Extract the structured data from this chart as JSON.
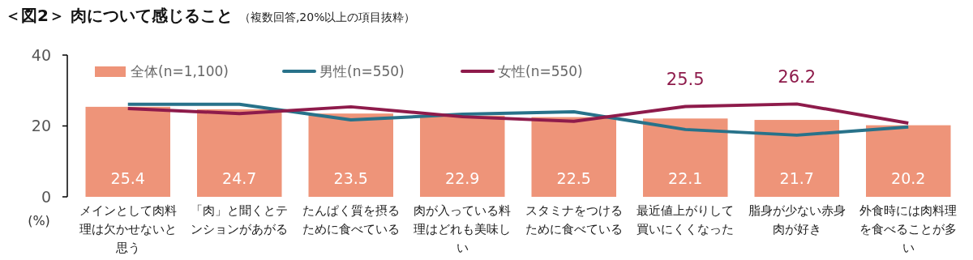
{
  "chart_data": {
    "type": "bar",
    "title": "＜図2＞ 肉について感じること",
    "subtitle": "（複数回答,20%以上の項目抜粋）",
    "ylabel": "(%)",
    "categories": [
      "メインとして肉料理は欠かせないと思う",
      "「肉」と聞くとテンションがあがる",
      "たんぱく質を摂るために食べている",
      "肉が入っている料理はどれも美味しい",
      "スタミナをつけるために食べている",
      "最近値上がりして買いにくくなった",
      "脂身が少ない赤身肉が好き",
      "外食時には肉料理を食べることが多い"
    ],
    "series": [
      {
        "name": "全体(n=1,100)",
        "color": "#ee9479",
        "values": [
          25.4,
          24.7,
          23.5,
          22.9,
          22.5,
          22.1,
          21.7,
          20.2
        ],
        "value_labels": [
          "25.4",
          "24.7",
          "23.5",
          "22.9",
          "22.5",
          "22.1",
          "21.7",
          "20.2"
        ]
      },
      {
        "name": "男性(n=550)",
        "type": "line",
        "color": "#28728a",
        "values": [
          26.1,
          26.1,
          21.7,
          23.3,
          24.0,
          19.0,
          17.4,
          19.7
        ]
      },
      {
        "name": "女性(n=550)",
        "type": "line",
        "color": "#8e1b4b",
        "values": [
          24.9,
          23.5,
          25.4,
          22.6,
          21.3,
          25.5,
          26.2,
          20.8
        ],
        "value_labels": [
          null,
          null,
          null,
          null,
          null,
          "25.5",
          "26.2",
          null
        ]
      }
    ],
    "ylim": [
      0,
      40
    ],
    "yticks": [
      0,
      20,
      40
    ],
    "legend": "top",
    "grid": false
  }
}
